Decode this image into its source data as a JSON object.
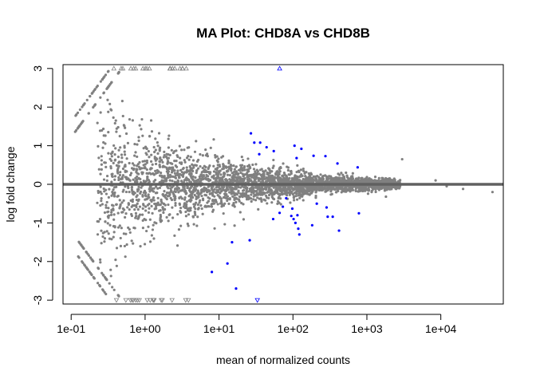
{
  "chart_data": {
    "type": "scatter",
    "title": "MA Plot: CHD8A vs CHD8B",
    "xlabel": "mean of normalized counts",
    "ylabel": "log fold change",
    "x_scale": "log10",
    "xlim": [
      0.0776,
      70000
    ],
    "ylim": [
      -3.1,
      3.1
    ],
    "x_ticks": [
      {
        "value": 0.1,
        "label": "1e-01"
      },
      {
        "value": 1,
        "label": "1e+00"
      },
      {
        "value": 10,
        "label": "1e+01"
      },
      {
        "value": 100,
        "label": "1e+02"
      },
      {
        "value": 1000,
        "label": "1e+03"
      },
      {
        "value": 10000,
        "label": "1e+04"
      }
    ],
    "y_ticks": [
      {
        "value": -3,
        "label": "-3"
      },
      {
        "value": -2,
        "label": "-2"
      },
      {
        "value": -1,
        "label": "-1"
      },
      {
        "value": 0,
        "label": "0"
      },
      {
        "value": 1,
        "label": "1"
      },
      {
        "value": 2,
        "label": "2"
      },
      {
        "value": 3,
        "label": "3"
      }
    ],
    "reference_line": 0,
    "colors": {
      "non_significant": "#808080",
      "significant": "#0000ff",
      "reference_line": "#606060"
    },
    "clip_limit": 3,
    "significant_points": [
      [
        27,
        1.32
      ],
      [
        30,
        1.08
      ],
      [
        35,
        0.78
      ],
      [
        36,
        1.08
      ],
      [
        44,
        0.96
      ],
      [
        55,
        0.86
      ],
      [
        105,
        1.0
      ],
      [
        112,
        0.68
      ],
      [
        130,
        0.92
      ],
      [
        190,
        0.74
      ],
      [
        275,
        0.73
      ],
      [
        400,
        0.54
      ],
      [
        750,
        0.44
      ],
      [
        54,
        -0.9
      ],
      [
        66,
        -0.74
      ],
      [
        73,
        -0.58
      ],
      [
        81,
        -0.36
      ],
      [
        95,
        -0.82
      ],
      [
        98,
        -0.63
      ],
      [
        102,
        -0.9
      ],
      [
        108,
        -1.0
      ],
      [
        115,
        -0.8
      ],
      [
        118,
        -1.15
      ],
      [
        122,
        -1.3
      ],
      [
        182,
        -1.06
      ],
      [
        210,
        -0.5
      ],
      [
        285,
        -0.6
      ],
      [
        295,
        -0.84
      ],
      [
        345,
        -0.84
      ],
      [
        420,
        -1.2
      ],
      [
        780,
        -0.75
      ],
      [
        26,
        -1.45
      ],
      [
        15,
        -1.5
      ],
      [
        13,
        -2.05
      ],
      [
        8,
        -2.27
      ],
      [
        17,
        -2.7
      ]
    ],
    "significant_clipped_up": [
      66
    ],
    "significant_clipped_down": [
      33
    ],
    "extra_points": [
      [
        3000,
        0.65
      ],
      [
        12000,
        -0.05
      ],
      [
        50000,
        -0.2
      ],
      [
        8500,
        0.1
      ],
      [
        20000,
        -0.12
      ]
    ]
  }
}
